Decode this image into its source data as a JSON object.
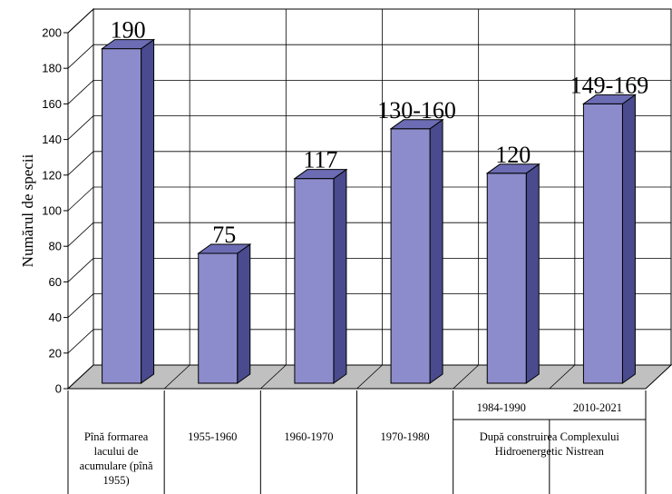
{
  "chart_data": {
    "type": "bar",
    "ylabel": "Numărul de specii",
    "ylim": [
      0,
      200
    ],
    "yticks": [
      0,
      20,
      40,
      60,
      80,
      100,
      120,
      140,
      160,
      180,
      200
    ],
    "grid": true,
    "three_d": true,
    "bar_color": "#8c8ccc",
    "categories": [
      "Pînă formarea lacului de acumulare (pînă 1955)",
      "1955-1960",
      "1960-1970",
      "1970-1980",
      "1984-1990",
      "2010-2021"
    ],
    "values": [
      190,
      75,
      117,
      145,
      120,
      159
    ],
    "data_labels": [
      "190",
      "75",
      "117",
      "130-160",
      "120",
      "149-169"
    ],
    "group_label": "După construirea Complexului Hidroenergetic Nistrean"
  }
}
